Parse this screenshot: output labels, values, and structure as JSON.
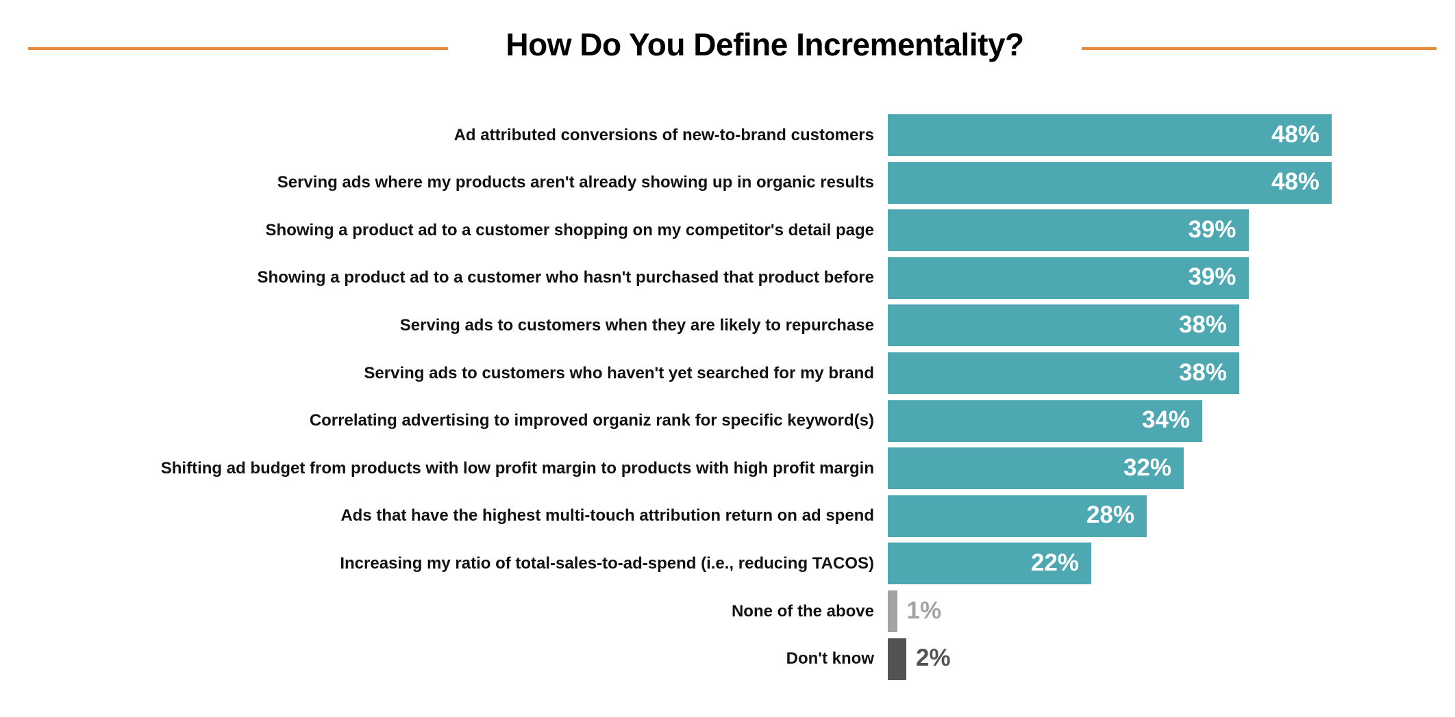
{
  "chart_data": {
    "type": "bar",
    "orientation": "horizontal",
    "title": "How Do You Define Incrementality?",
    "xlabel": "",
    "ylabel": "",
    "xlim": [
      0,
      48
    ],
    "grid": false,
    "categories": [
      "Ad attributed conversions of new-to-brand customers",
      "Serving ads where my products aren't already showing up in organic results",
      "Showing a product ad to a customer shopping on my competitor's detail page",
      "Showing a product ad to a customer who hasn't purchased that product before",
      "Serving ads to customers when they are likely to  repurchase",
      "Serving ads to customers who haven't yet searched for my brand",
      "Correlating advertising to improved organiz rank for specific keyword(s)",
      "Shifting ad budget from products with low profit margin to products with high profit margin",
      "Ads that have the highest multi-touch attribution return on ad spend",
      "Increasing my ratio of total-sales-to-ad-spend (i.e., reducing TACOS)",
      "None of the above",
      "Don't know"
    ],
    "values": [
      48,
      48,
      39,
      39,
      38,
      38,
      34,
      32,
      28,
      22,
      1,
      2
    ],
    "data_labels": [
      "48%",
      "48%",
      "39%",
      "39%",
      "38%",
      "38%",
      "34%",
      "32%",
      "28%",
      "22%",
      "1%",
      "2%"
    ],
    "colors": [
      "#4EA8B2",
      "#4EA8B2",
      "#4EA8B2",
      "#4EA8B2",
      "#4EA8B2",
      "#4EA8B2",
      "#4EA8B2",
      "#4EA8B2",
      "#4EA8B2",
      "#4EA8B2",
      "#A3A3A3",
      "#535353"
    ],
    "accent_color": "#E8893A"
  }
}
